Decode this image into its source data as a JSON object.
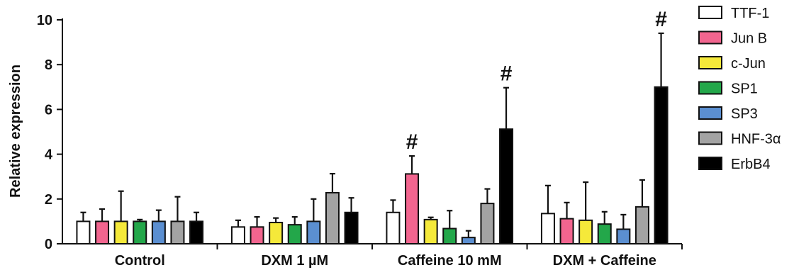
{
  "chart_data": {
    "type": "bar",
    "title": "",
    "xlabel": "",
    "ylabel": "Relative expression",
    "ylim": [
      0,
      10
    ],
    "yticks": [
      "0",
      "2",
      "4",
      "6",
      "8",
      "10"
    ],
    "grid": false,
    "legend_position": "right",
    "categories": [
      "Control",
      "DXM 1 µM",
      "Caffeine 10 mM",
      "DXM + Caffeine"
    ],
    "series": [
      {
        "name": "TTF-1",
        "color": "#ffffff",
        "values": [
          1.0,
          0.75,
          1.4,
          1.35
        ],
        "errors": [
          0.4,
          0.3,
          0.55,
          1.25
        ]
      },
      {
        "name": "Jun B",
        "color": "#f2658f",
        "values": [
          1.0,
          0.75,
          3.12,
          1.12
        ],
        "errors": [
          0.55,
          0.45,
          0.8,
          0.72
        ]
      },
      {
        "name": "c-Jun",
        "color": "#f5e93a",
        "values": [
          1.0,
          0.95,
          1.08,
          1.05
        ],
        "errors": [
          1.35,
          0.2,
          0.1,
          1.7
        ]
      },
      {
        "name": "SP1",
        "color": "#23a74a",
        "values": [
          1.0,
          0.85,
          0.68,
          0.88
        ],
        "errors": [
          0.08,
          0.35,
          0.8,
          0.55
        ]
      },
      {
        "name": "SP3",
        "color": "#5b8fd1",
        "values": [
          1.0,
          1.0,
          0.28,
          0.65
        ],
        "errors": [
          0.5,
          1.0,
          0.3,
          0.65
        ]
      },
      {
        "name": "HNF-3α",
        "color": "#a3a3a3",
        "values": [
          1.0,
          2.28,
          1.8,
          1.65
        ],
        "errors": [
          1.1,
          0.85,
          0.65,
          1.2
        ]
      },
      {
        "name": "ErbB4",
        "color": "#000000",
        "values": [
          1.0,
          1.4,
          5.12,
          7.0
        ],
        "errors": [
          0.4,
          0.65,
          1.85,
          2.4
        ]
      }
    ],
    "annotations": [
      {
        "text": "#",
        "category": "Caffeine 10 mM",
        "series": "Jun B"
      },
      {
        "text": "#",
        "category": "Caffeine 10 mM",
        "series": "ErbB4"
      },
      {
        "text": "#",
        "category": "DXM + Caffeine",
        "series": "ErbB4"
      }
    ]
  }
}
